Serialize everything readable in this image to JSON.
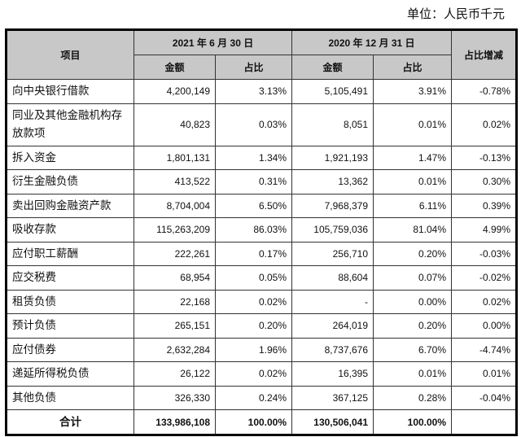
{
  "unit_label": "单位：人民币千元",
  "header": {
    "item": "项目",
    "period1": "2021 年 6 月 30 日",
    "period2": "2020 年 12 月 31 日",
    "change": "占比增减",
    "amount": "金额",
    "ratio": "占比"
  },
  "rows": [
    {
      "name": "向中央银行借款",
      "a1": "4,200,149",
      "r1": "3.13%",
      "a2": "5,105,491",
      "r2": "3.91%",
      "chg": "-0.78%"
    },
    {
      "name": "同业及其他金融机构存放款项",
      "a1": "40,823",
      "r1": "0.03%",
      "a2": "8,051",
      "r2": "0.01%",
      "chg": "0.02%"
    },
    {
      "name": "拆入资金",
      "a1": "1,801,131",
      "r1": "1.34%",
      "a2": "1,921,193",
      "r2": "1.47%",
      "chg": "-0.13%"
    },
    {
      "name": "衍生金融负债",
      "a1": "413,522",
      "r1": "0.31%",
      "a2": "13,362",
      "r2": "0.01%",
      "chg": "0.30%"
    },
    {
      "name": "卖出回购金融资产款",
      "a1": "8,704,004",
      "r1": "6.50%",
      "a2": "7,968,379",
      "r2": "6.11%",
      "chg": "0.39%"
    },
    {
      "name": "吸收存款",
      "a1": "115,263,209",
      "r1": "86.03%",
      "a2": "105,759,036",
      "r2": "81.04%",
      "chg": "4.99%"
    },
    {
      "name": "应付职工薪酬",
      "a1": "222,261",
      "r1": "0.17%",
      "a2": "256,710",
      "r2": "0.20%",
      "chg": "-0.03%"
    },
    {
      "name": "应交税费",
      "a1": "68,954",
      "r1": "0.05%",
      "a2": "88,604",
      "r2": "0.07%",
      "chg": "-0.02%"
    },
    {
      "name": "租赁负债",
      "a1": "22,168",
      "r1": "0.02%",
      "a2": "-",
      "r2": "0.00%",
      "chg": "0.02%"
    },
    {
      "name": "预计负债",
      "a1": "265,151",
      "r1": "0.20%",
      "a2": "264,019",
      "r2": "0.20%",
      "chg": "0.00%"
    },
    {
      "name": "应付债券",
      "a1": "2,632,284",
      "r1": "1.96%",
      "a2": "8,737,676",
      "r2": "6.70%",
      "chg": "-4.74%"
    },
    {
      "name": "递延所得税负债",
      "a1": "26,122",
      "r1": "0.02%",
      "a2": "16,395",
      "r2": "0.01%",
      "chg": "0.01%"
    },
    {
      "name": "其他负债",
      "a1": "326,330",
      "r1": "0.24%",
      "a2": "367,125",
      "r2": "0.28%",
      "chg": "-0.04%"
    }
  ],
  "total": {
    "name": "合计",
    "a1": "133,986,108",
    "r1": "100.00%",
    "a2": "130,506,041",
    "r2": "100.00%",
    "chg": ""
  }
}
